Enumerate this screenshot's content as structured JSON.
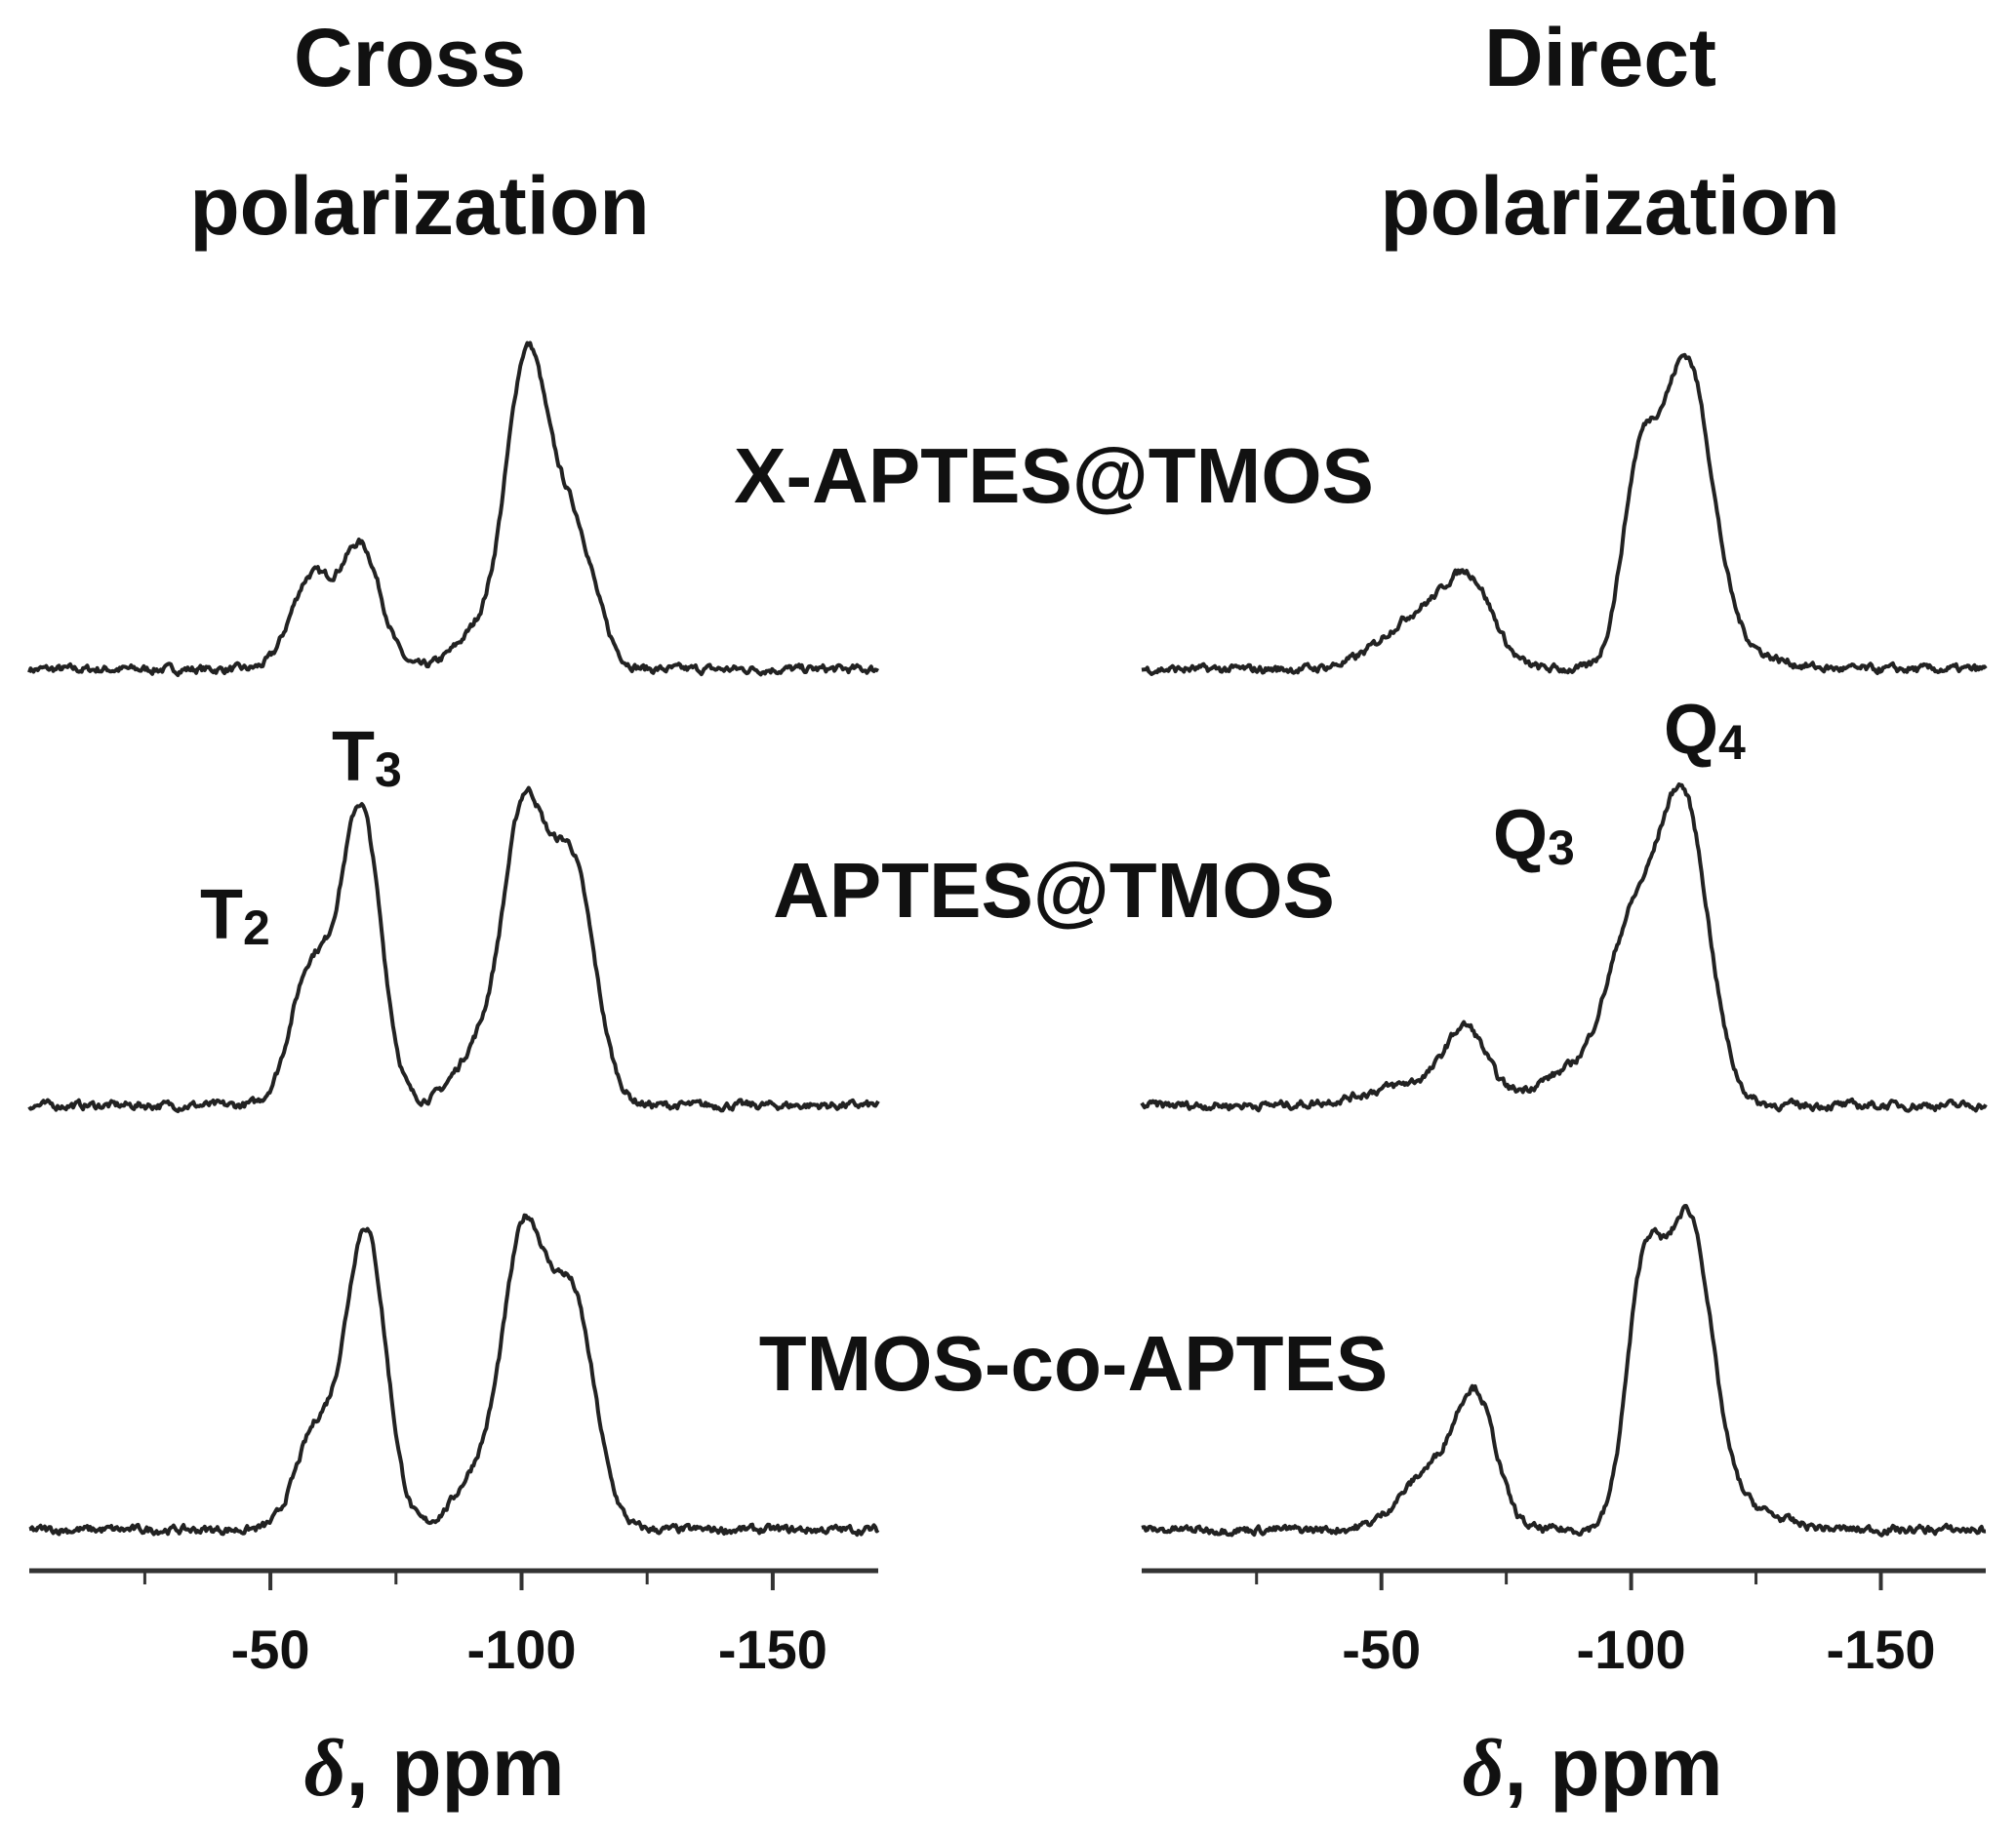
{
  "chart_data": [
    {
      "type": "line",
      "title": "Cross\npolarization",
      "title_lines": [
        "Cross",
        "polarization"
      ],
      "xlabel_symbol": "δ",
      "xlabel_unit": ", ppm",
      "xlim": [
        -2,
        -171
      ],
      "x_inverted": true,
      "xticks": [
        -50,
        -100,
        -150
      ],
      "xticks_minor": [
        -25,
        -75,
        -125
      ],
      "yaxis": "none",
      "grid": false,
      "series": [
        {
          "name": "X-APTES@TMOS",
          "peaks": [
            {
              "center": -58,
              "height": 0.28,
              "width": 4
            },
            {
              "center": -68,
              "height": 0.38,
              "width": 4
            },
            {
              "center": -92,
              "height": 0.12,
              "width": 5
            },
            {
              "center": -101,
              "height": 0.92,
              "width": 4
            },
            {
              "center": -110,
              "height": 0.45,
              "width": 4.5
            }
          ]
        },
        {
          "name": "APTES@TMOS",
          "peaks": [
            {
              "center": -58,
              "height": 0.42,
              "width": 4
            },
            {
              "center": -68,
              "height": 0.92,
              "width": 4
            },
            {
              "center": -92,
              "height": 0.18,
              "width": 5
            },
            {
              "center": -100.5,
              "height": 0.85,
              "width": 4
            },
            {
              "center": -110,
              "height": 0.75,
              "width": 4.5
            }
          ]
        },
        {
          "name": "TMOS-co-APTES",
          "peaks": [
            {
              "center": -59,
              "height": 0.3,
              "width": 4
            },
            {
              "center": -69,
              "height": 0.93,
              "width": 4
            },
            {
              "center": -92,
              "height": 0.18,
              "width": 5
            },
            {
              "center": -100.5,
              "height": 0.85,
              "width": 4
            },
            {
              "center": -110,
              "height": 0.72,
              "width": 4.5
            }
          ]
        }
      ],
      "annotations": [
        {
          "base": "T",
          "sub": "2",
          "x": -58
        },
        {
          "base": "T",
          "sub": "3",
          "x": -68
        }
      ]
    },
    {
      "type": "line",
      "title": "Direct\npolarization",
      "title_lines": [
        "Direct",
        "polarization"
      ],
      "xlabel_symbol": "δ",
      "xlabel_unit": ", ppm",
      "xlim": [
        -2,
        -171
      ],
      "x_inverted": true,
      "xticks": [
        -50,
        -100,
        -150
      ],
      "xticks_minor": [
        -25,
        -75,
        -125
      ],
      "yaxis": "none",
      "grid": false,
      "series": [
        {
          "name": "X-APTES@TMOS",
          "peaks": [
            {
              "center": -59,
              "height": 0.18,
              "width": 8
            },
            {
              "center": -68,
              "height": 0.2,
              "width": 4.5
            },
            {
              "center": -101.5,
              "height": 0.55,
              "width": 3.5
            },
            {
              "center": -111,
              "height": 0.93,
              "width": 5
            },
            {
              "center": -120,
              "height": 0.06,
              "width": 8
            }
          ]
        },
        {
          "name": "APTES@TMOS",
          "peaks": [
            {
              "center": -58,
              "height": 0.07,
              "width": 10
            },
            {
              "center": -67,
              "height": 0.2,
              "width": 4
            },
            {
              "center": -88,
              "height": 0.1,
              "width": 7
            },
            {
              "center": -100,
              "height": 0.5,
              "width": 5
            },
            {
              "center": -110.5,
              "height": 0.93,
              "width": 5
            }
          ]
        },
        {
          "name": "TMOS-co-APTES",
          "peaks": [
            {
              "center": -60,
              "height": 0.18,
              "width": 6
            },
            {
              "center": -69,
              "height": 0.38,
              "width": 4
            },
            {
              "center": -102.5,
              "height": 0.75,
              "width": 3.5
            },
            {
              "center": -111.5,
              "height": 0.92,
              "width": 4.5
            },
            {
              "center": -120,
              "height": 0.08,
              "width": 8
            }
          ]
        }
      ],
      "annotations": [
        {
          "base": "Q",
          "sub": "3",
          "x": -100
        },
        {
          "base": "Q",
          "sub": "4",
          "x": -111
        }
      ]
    }
  ]
}
